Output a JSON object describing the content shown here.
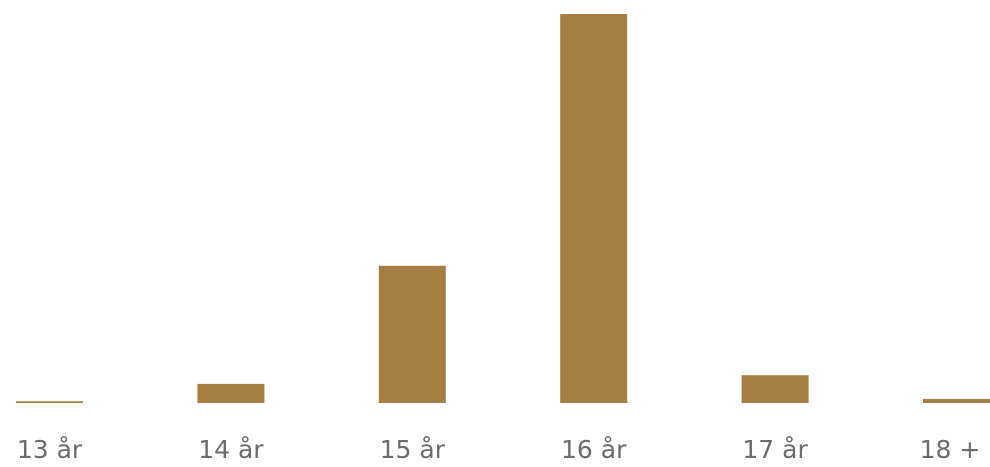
{
  "chart_data": {
    "type": "bar",
    "categories": [
      "13 år",
      "14 år",
      "15 år",
      "16 år",
      "17 år",
      "18 +"
    ],
    "values": [
      0.3,
      3.3,
      23.7,
      67.2,
      4.8,
      0.7
    ],
    "color": "#a57f42"
  }
}
